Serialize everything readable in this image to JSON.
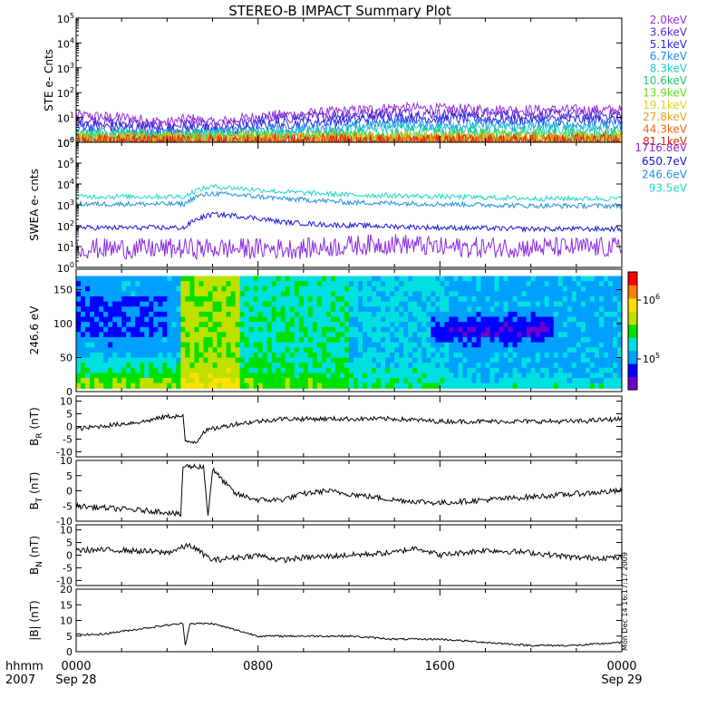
{
  "title": "STEREO-B IMPACT Summary Plot",
  "time_axis": {
    "unit_label": "hhmm",
    "year_label": "2007",
    "ticks": [
      {
        "hhmm": "0000",
        "date": "Sep 28"
      },
      {
        "hhmm": "0800",
        "date": ""
      },
      {
        "hhmm": "1600",
        "date": ""
      },
      {
        "hhmm": "0000",
        "date": "Sep 29"
      }
    ]
  },
  "side_stamp": "Mon Dec 14 16:17:17 2009",
  "chart_data": [
    {
      "type": "line",
      "id": "ste",
      "ylabel": "STE e- Cnts",
      "yscale": "log",
      "ylim": [
        1,
        100000
      ],
      "tick_labels": [
        "10^0",
        "10^1",
        "10^2",
        "10^3",
        "10^4",
        "10^5"
      ],
      "series": [
        {
          "name": "2.0keV",
          "color": "#9b30d9",
          "keyframes": [
            [
              0,
              12
            ],
            [
              2,
              10
            ],
            [
              4,
              6
            ],
            [
              5,
              9
            ],
            [
              6,
              6
            ],
            [
              7,
              8
            ],
            [
              8,
              11
            ],
            [
              10,
              14
            ],
            [
              12,
              18
            ],
            [
              14,
              25
            ],
            [
              16,
              22
            ],
            [
              20,
              20
            ],
            [
              24,
              20
            ]
          ]
        },
        {
          "name": "3.6keV",
          "color": "#5a2ad2",
          "keyframes": [
            [
              0,
              8
            ],
            [
              2,
              6
            ],
            [
              4,
              4
            ],
            [
              5,
              6
            ],
            [
              6,
              4
            ],
            [
              7,
              5
            ],
            [
              8,
              8
            ],
            [
              10,
              10
            ],
            [
              12,
              13
            ],
            [
              14,
              16
            ],
            [
              16,
              14
            ],
            [
              20,
              13
            ],
            [
              24,
              13
            ]
          ]
        },
        {
          "name": "5.1keV",
          "color": "#2a2ae8",
          "keyframes": [
            [
              0,
              5
            ],
            [
              2,
              4
            ],
            [
              4,
              3
            ],
            [
              5,
              4
            ],
            [
              6,
              3
            ],
            [
              7,
              3
            ],
            [
              8,
              5
            ],
            [
              10,
              6
            ],
            [
              12,
              8
            ],
            [
              14,
              10
            ],
            [
              16,
              9
            ],
            [
              20,
              8
            ],
            [
              24,
              8
            ]
          ]
        },
        {
          "name": "6.7keV",
          "color": "#1e8ee8",
          "keyframes": [
            [
              0,
              3
            ],
            [
              4,
              2
            ],
            [
              8,
              3
            ],
            [
              12,
              4
            ],
            [
              14,
              6
            ],
            [
              16,
              5
            ],
            [
              24,
              5
            ]
          ]
        },
        {
          "name": "8.3keV",
          "color": "#22cccc",
          "keyframes": [
            [
              0,
              2
            ],
            [
              8,
              2
            ],
            [
              12,
              3
            ],
            [
              14,
              4
            ],
            [
              24,
              3
            ]
          ]
        },
        {
          "name": "10.6keV",
          "color": "#22c870",
          "keyframes": [
            [
              0,
              1.6
            ],
            [
              24,
              2
            ]
          ]
        },
        {
          "name": "13.9keV",
          "color": "#6ad820",
          "keyframes": [
            [
              0,
              1.4
            ],
            [
              24,
              1.6
            ]
          ]
        },
        {
          "name": "19.1keV",
          "color": "#d8d820",
          "keyframes": [
            [
              0,
              1.3
            ],
            [
              24,
              1.4
            ]
          ]
        },
        {
          "name": "27.8keV",
          "color": "#e8a020",
          "keyframes": [
            [
              0,
              1.2
            ],
            [
              24,
              1.3
            ]
          ]
        },
        {
          "name": "44.3keV",
          "color": "#e86a18",
          "keyframes": [
            [
              0,
              1.1
            ],
            [
              24,
              1.2
            ]
          ]
        },
        {
          "name": "81.1keV",
          "color": "#e02010",
          "keyframes": [
            [
              0,
              1.05
            ],
            [
              24,
              1.1
            ]
          ]
        }
      ]
    },
    {
      "type": "line",
      "id": "swea",
      "ylabel": "SWEA e- cnts",
      "yscale": "log",
      "ylim": [
        1,
        1000000
      ],
      "tick_labels": [
        "10^0",
        "10^1",
        "10^2",
        "10^3",
        "10^4",
        "10^5",
        "10^6"
      ],
      "series": [
        {
          "name": "1716.8eV",
          "color": "#8a2be2",
          "keyframes": [
            [
              0,
              8
            ],
            [
              6,
              8
            ],
            [
              10,
              8
            ],
            [
              14,
              14
            ],
            [
              16,
              9
            ],
            [
              24,
              9
            ]
          ]
        },
        {
          "name": "650.7eV",
          "color": "#1818d8",
          "keyframes": [
            [
              0,
              80
            ],
            [
              4.8,
              80
            ],
            [
              5.3,
              200
            ],
            [
              6,
              350
            ],
            [
              7,
              300
            ],
            [
              9,
              150
            ],
            [
              11,
              110
            ],
            [
              16,
              80
            ],
            [
              20,
              70
            ],
            [
              24,
              70
            ]
          ]
        },
        {
          "name": "246.6eV",
          "color": "#1e90e0",
          "keyframes": [
            [
              0,
              1100
            ],
            [
              4.8,
              1100
            ],
            [
              5.3,
              2500
            ],
            [
              6,
              3500
            ],
            [
              9,
              2000
            ],
            [
              12,
              1300
            ],
            [
              20,
              900
            ],
            [
              24,
              900
            ]
          ]
        },
        {
          "name": "93.5eV",
          "color": "#20d8c8",
          "keyframes": [
            [
              0,
              2500
            ],
            [
              4.8,
              2500
            ],
            [
              5.3,
              5000
            ],
            [
              6,
              7500
            ],
            [
              9,
              4200
            ],
            [
              12,
              3000
            ],
            [
              20,
              2000
            ],
            [
              24,
              2000
            ]
          ]
        }
      ]
    },
    {
      "type": "heatmap",
      "id": "pad",
      "ylabel": "246.6 eV",
      "ylim": [
        0,
        180
      ],
      "yticks": [
        0,
        50,
        100,
        150
      ],
      "colorbar": {
        "scale": "log",
        "range": [
          30000,
          3000000
        ],
        "tick_labels": [
          "10^5",
          "10^6"
        ]
      },
      "colorscale": [
        "#7000c8",
        "#0000ff",
        "#00a0ff",
        "#00e0e0",
        "#00e000",
        "#c0e000",
        "#ffe000",
        "#ff8000",
        "#ff0000"
      ],
      "description_values": "pitch-angle distribution, 0-180 deg, time 0-24 h"
    },
    {
      "type": "line",
      "id": "br",
      "ylabel": "B_R (nT)",
      "ylim": [
        -12,
        12
      ],
      "yticks": [
        -10,
        -5,
        0,
        5,
        10
      ],
      "series": [
        {
          "name": "",
          "color": "#000000",
          "keyframes": [
            [
              0,
              -1
            ],
            [
              1,
              0
            ],
            [
              2,
              1
            ],
            [
              3,
              2
            ],
            [
              4,
              4
            ],
            [
              4.7,
              4
            ],
            [
              4.8,
              -6
            ],
            [
              5.3,
              -6
            ],
            [
              5.6,
              -2
            ],
            [
              6,
              -1
            ],
            [
              7,
              1
            ],
            [
              8,
              2
            ],
            [
              9,
              3
            ],
            [
              10,
              3
            ],
            [
              12,
              3
            ],
            [
              14,
              3
            ],
            [
              16,
              2
            ],
            [
              18,
              2
            ],
            [
              20,
              2
            ],
            [
              22,
              2
            ],
            [
              24,
              3
            ]
          ]
        }
      ]
    },
    {
      "type": "line",
      "id": "bt",
      "ylabel": "B_T (nT)",
      "ylim": [
        -10,
        10
      ],
      "yticks": [
        -10,
        -5,
        0,
        5,
        10
      ],
      "series": [
        {
          "name": "",
          "color": "#000000",
          "keyframes": [
            [
              0,
              -5
            ],
            [
              2,
              -6
            ],
            [
              4,
              -7
            ],
            [
              4.6,
              -8
            ],
            [
              4.7,
              8
            ],
            [
              5.6,
              8
            ],
            [
              5.8,
              -8
            ],
            [
              6,
              7
            ],
            [
              7,
              -1
            ],
            [
              8,
              -3
            ],
            [
              9,
              -3
            ],
            [
              10,
              -1
            ],
            [
              11,
              0
            ],
            [
              12,
              -1
            ],
            [
              13,
              -2
            ],
            [
              14,
              -3
            ],
            [
              16,
              -4
            ],
            [
              18,
              -3
            ],
            [
              20,
              -2
            ],
            [
              22,
              -1
            ],
            [
              24,
              0
            ]
          ]
        }
      ]
    },
    {
      "type": "line",
      "id": "bn",
      "ylabel": "B_N (nT)",
      "ylim": [
        -12,
        12
      ],
      "yticks": [
        -10,
        -5,
        0,
        5,
        10
      ],
      "series": [
        {
          "name": "",
          "color": "#000000",
          "keyframes": [
            [
              0,
              2
            ],
            [
              2,
              2
            ],
            [
              4,
              1
            ],
            [
              5,
              4
            ],
            [
              6,
              -2
            ],
            [
              7,
              -1
            ],
            [
              8,
              0
            ],
            [
              9,
              -2
            ],
            [
              10,
              -1
            ],
            [
              12,
              0
            ],
            [
              14,
              1
            ],
            [
              15,
              3
            ],
            [
              16,
              0
            ],
            [
              18,
              2
            ],
            [
              20,
              1
            ],
            [
              22,
              -1
            ],
            [
              24,
              -1
            ]
          ]
        }
      ]
    },
    {
      "type": "line",
      "id": "bmag",
      "ylabel": "|B| (nT)",
      "ylim": [
        0,
        20
      ],
      "yticks": [
        0,
        5,
        10,
        15,
        20
      ],
      "series": [
        {
          "name": "",
          "color": "#000000",
          "keyframes": [
            [
              0,
              5.5
            ],
            [
              1,
              5.5
            ],
            [
              2,
              6.5
            ],
            [
              3,
              7.5
            ],
            [
              4,
              8.5
            ],
            [
              4.7,
              9
            ],
            [
              4.8,
              2
            ],
            [
              5,
              9
            ],
            [
              6,
              9
            ],
            [
              7,
              7
            ],
            [
              8,
              5
            ],
            [
              10,
              5
            ],
            [
              12,
              5
            ],
            [
              14,
              4
            ],
            [
              16,
              4
            ],
            [
              18,
              3
            ],
            [
              20,
              2
            ],
            [
              21,
              2
            ],
            [
              22,
              2
            ],
            [
              24,
              3
            ]
          ]
        }
      ]
    }
  ]
}
